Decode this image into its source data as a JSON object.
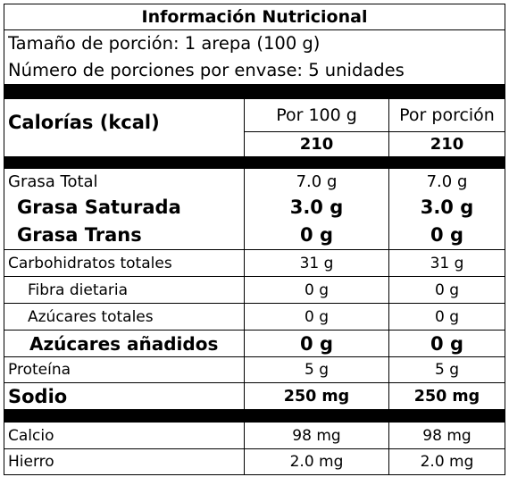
{
  "title": "Información Nutricional",
  "serving_size": "Tamaño de porción: 1 arepa (100 g)",
  "servings_per_container": "Número de porciones por envase: 5 unidades",
  "calories": {
    "label": "Calorías (kcal)",
    "col1_header": "Por 100 g",
    "col2_header": "Por porción",
    "col1_value": "210",
    "col2_value": "210"
  },
  "nutrients": [
    {
      "label": "Grasa Total",
      "per100": "7.0 g",
      "perServing": "7.0 g"
    },
    {
      "label": "Grasa Saturada",
      "per100": "3.0 g",
      "perServing": "3.0 g"
    },
    {
      "label": "Grasa Trans",
      "per100": "0 g",
      "perServing": "0 g"
    },
    {
      "label": "Carbohidratos totales",
      "per100": "31 g",
      "perServing": "31 g"
    },
    {
      "label": "Fibra dietaria",
      "per100": "0 g",
      "perServing": "0 g"
    },
    {
      "label": "Azúcares totales",
      "per100": "0 g",
      "perServing": "0 g"
    },
    {
      "label": "Azúcares añadidos",
      "per100": "0 g",
      "perServing": "0 g"
    },
    {
      "label": "Proteína",
      "per100": "5 g",
      "perServing": "5 g"
    },
    {
      "label": "Sodio",
      "per100": "250 mg",
      "perServing": "250 mg"
    }
  ],
  "minerals": [
    {
      "label": "Calcio",
      "per100": "98 mg",
      "perServing": "98 mg"
    },
    {
      "label": "Hierro",
      "per100": "2.0 mg",
      "perServing": "2.0 mg"
    }
  ]
}
